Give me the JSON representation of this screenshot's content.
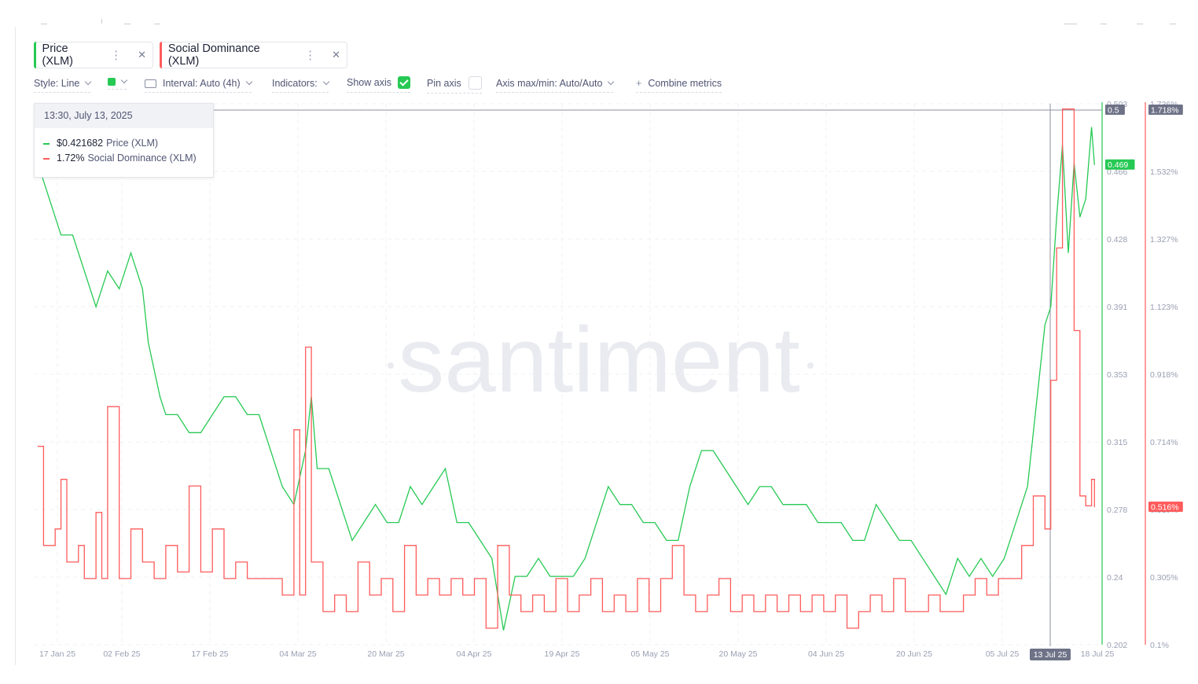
{
  "metrics": [
    {
      "label": "Price (XLM)",
      "color": "#26c953"
    },
    {
      "label": "Social Dominance (XLM)",
      "color": "#ff5b5b"
    }
  ],
  "controls": {
    "style": "Style: Line",
    "interval": "Interval: Auto (4h)",
    "indicators": "Indicators:",
    "show_axis": "Show axis",
    "pin_axis": "Pin axis",
    "axis_maxmin": "Axis max/min: Auto/Auto",
    "combine": "Combine metrics"
  },
  "tooltip": {
    "date": "13:30, July 13, 2025",
    "price_value": "$0.421682",
    "price_label": "Price (XLM)",
    "dominance_value": "1.72%",
    "dominance_label": "Social Dominance (XLM)"
  },
  "watermark": "santiment",
  "chart_data": {
    "type": "line",
    "x_ticks": [
      "17 Jan 25",
      "02 Feb 25",
      "17 Feb 25",
      "04 Mar 25",
      "20 Mar 25",
      "04 Apr 25",
      "19 Apr 25",
      "05 May 25",
      "20 May 25",
      "04 Jun 25",
      "20 Jun 25",
      "05 Jul 25",
      "13 Jul 25",
      "18 Jul 25"
    ],
    "x_range": [
      "2025-01-17",
      "2025-07-18"
    ],
    "y_left": {
      "ticks": [
        "0.503",
        "0.466",
        "0.428",
        "0.391",
        "0.353",
        "0.315",
        "0.278",
        "0.24",
        "0.202"
      ],
      "range": [
        0.202,
        0.503
      ],
      "top_label": "0.5",
      "current_label": "0.469"
    },
    "y_right": {
      "ticks": [
        "1.736%",
        "1.532%",
        "1.327%",
        "1.123%",
        "0.918%",
        "0.714%",
        "0.510%",
        "0.305%",
        "0.1%"
      ],
      "range": [
        0.1,
        1.736
      ],
      "top_label": "1.718%",
      "current_label": "0.516%"
    },
    "highlight_x_label": "13 Jul 25",
    "grid": true,
    "series": [
      {
        "name": "Price (XLM)",
        "color": "#26c953",
        "points": [
          [
            "2025-01-17",
            0.47
          ],
          [
            "2025-01-19",
            0.45
          ],
          [
            "2025-01-21",
            0.43
          ],
          [
            "2025-01-23",
            0.43
          ],
          [
            "2025-01-25",
            0.41
          ],
          [
            "2025-01-27",
            0.39
          ],
          [
            "2025-01-29",
            0.41
          ],
          [
            "2025-01-31",
            0.4
          ],
          [
            "2025-02-02",
            0.42
          ],
          [
            "2025-02-04",
            0.4
          ],
          [
            "2025-02-05",
            0.37
          ],
          [
            "2025-02-07",
            0.34
          ],
          [
            "2025-02-08",
            0.33
          ],
          [
            "2025-02-10",
            0.33
          ],
          [
            "2025-02-12",
            0.32
          ],
          [
            "2025-02-14",
            0.32
          ],
          [
            "2025-02-16",
            0.33
          ],
          [
            "2025-02-18",
            0.34
          ],
          [
            "2025-02-20",
            0.34
          ],
          [
            "2025-02-22",
            0.33
          ],
          [
            "2025-02-24",
            0.33
          ],
          [
            "2025-02-26",
            0.31
          ],
          [
            "2025-02-28",
            0.29
          ],
          [
            "2025-03-02",
            0.28
          ],
          [
            "2025-03-04",
            0.31
          ],
          [
            "2025-03-05",
            0.34
          ],
          [
            "2025-03-06",
            0.3
          ],
          [
            "2025-03-08",
            0.3
          ],
          [
            "2025-03-10",
            0.28
          ],
          [
            "2025-03-12",
            0.26
          ],
          [
            "2025-03-14",
            0.27
          ],
          [
            "2025-03-16",
            0.28
          ],
          [
            "2025-03-18",
            0.27
          ],
          [
            "2025-03-20",
            0.27
          ],
          [
            "2025-03-22",
            0.29
          ],
          [
            "2025-03-24",
            0.28
          ],
          [
            "2025-03-26",
            0.29
          ],
          [
            "2025-03-28",
            0.3
          ],
          [
            "2025-03-30",
            0.27
          ],
          [
            "2025-04-01",
            0.27
          ],
          [
            "2025-04-03",
            0.26
          ],
          [
            "2025-04-05",
            0.25
          ],
          [
            "2025-04-07",
            0.21
          ],
          [
            "2025-04-09",
            0.24
          ],
          [
            "2025-04-11",
            0.24
          ],
          [
            "2025-04-13",
            0.25
          ],
          [
            "2025-04-15",
            0.24
          ],
          [
            "2025-04-17",
            0.24
          ],
          [
            "2025-04-19",
            0.24
          ],
          [
            "2025-04-21",
            0.25
          ],
          [
            "2025-04-23",
            0.27
          ],
          [
            "2025-04-25",
            0.29
          ],
          [
            "2025-04-27",
            0.28
          ],
          [
            "2025-04-29",
            0.28
          ],
          [
            "2025-05-01",
            0.27
          ],
          [
            "2025-05-03",
            0.27
          ],
          [
            "2025-05-05",
            0.26
          ],
          [
            "2025-05-07",
            0.26
          ],
          [
            "2025-05-09",
            0.29
          ],
          [
            "2025-05-11",
            0.31
          ],
          [
            "2025-05-13",
            0.31
          ],
          [
            "2025-05-15",
            0.3
          ],
          [
            "2025-05-17",
            0.29
          ],
          [
            "2025-05-19",
            0.28
          ],
          [
            "2025-05-21",
            0.29
          ],
          [
            "2025-05-23",
            0.29
          ],
          [
            "2025-05-25",
            0.28
          ],
          [
            "2025-05-27",
            0.28
          ],
          [
            "2025-05-29",
            0.28
          ],
          [
            "2025-05-31",
            0.27
          ],
          [
            "2025-06-02",
            0.27
          ],
          [
            "2025-06-04",
            0.27
          ],
          [
            "2025-06-06",
            0.26
          ],
          [
            "2025-06-08",
            0.26
          ],
          [
            "2025-06-10",
            0.28
          ],
          [
            "2025-06-12",
            0.27
          ],
          [
            "2025-06-14",
            0.26
          ],
          [
            "2025-06-16",
            0.26
          ],
          [
            "2025-06-18",
            0.25
          ],
          [
            "2025-06-20",
            0.24
          ],
          [
            "2025-06-22",
            0.23
          ],
          [
            "2025-06-24",
            0.25
          ],
          [
            "2025-06-26",
            0.24
          ],
          [
            "2025-06-28",
            0.25
          ],
          [
            "2025-06-30",
            0.24
          ],
          [
            "2025-07-02",
            0.25
          ],
          [
            "2025-07-04",
            0.27
          ],
          [
            "2025-07-06",
            0.29
          ],
          [
            "2025-07-08",
            0.35
          ],
          [
            "2025-07-09",
            0.38
          ],
          [
            "2025-07-10",
            0.39
          ],
          [
            "2025-07-11",
            0.44
          ],
          [
            "2025-07-12",
            0.48
          ],
          [
            "2025-07-13",
            0.42
          ],
          [
            "2025-07-14",
            0.47
          ],
          [
            "2025-07-15",
            0.44
          ],
          [
            "2025-07-16",
            0.45
          ],
          [
            "2025-07-17",
            0.49
          ],
          [
            "2025-07-17T12:00",
            0.469
          ]
        ]
      },
      {
        "name": "Social Dominance (XLM)",
        "color": "#ff5b5b",
        "points": [
          [
            "2025-01-17",
            0.7
          ],
          [
            "2025-01-18",
            0.4
          ],
          [
            "2025-01-20",
            0.45
          ],
          [
            "2025-01-21",
            0.6
          ],
          [
            "2025-01-22",
            0.35
          ],
          [
            "2025-01-24",
            0.4
          ],
          [
            "2025-01-25",
            0.3
          ],
          [
            "2025-01-27",
            0.5
          ],
          [
            "2025-01-28",
            0.3
          ],
          [
            "2025-01-29",
            0.82
          ],
          [
            "2025-01-31",
            0.3
          ],
          [
            "2025-02-02",
            0.45
          ],
          [
            "2025-02-04",
            0.35
          ],
          [
            "2025-02-06",
            0.3
          ],
          [
            "2025-02-08",
            0.4
          ],
          [
            "2025-02-10",
            0.32
          ],
          [
            "2025-02-12",
            0.58
          ],
          [
            "2025-02-14",
            0.32
          ],
          [
            "2025-02-16",
            0.45
          ],
          [
            "2025-02-18",
            0.3
          ],
          [
            "2025-02-20",
            0.35
          ],
          [
            "2025-02-22",
            0.3
          ],
          [
            "2025-02-24",
            0.3
          ],
          [
            "2025-02-26",
            0.3
          ],
          [
            "2025-02-28",
            0.25
          ],
          [
            "2025-03-02",
            0.75
          ],
          [
            "2025-03-03",
            0.25
          ],
          [
            "2025-03-04",
            1.0
          ],
          [
            "2025-03-05",
            0.35
          ],
          [
            "2025-03-07",
            0.2
          ],
          [
            "2025-03-09",
            0.25
          ],
          [
            "2025-03-11",
            0.2
          ],
          [
            "2025-03-13",
            0.35
          ],
          [
            "2025-03-15",
            0.25
          ],
          [
            "2025-03-17",
            0.3
          ],
          [
            "2025-03-19",
            0.2
          ],
          [
            "2025-03-21",
            0.4
          ],
          [
            "2025-03-23",
            0.25
          ],
          [
            "2025-03-25",
            0.3
          ],
          [
            "2025-03-27",
            0.25
          ],
          [
            "2025-03-29",
            0.3
          ],
          [
            "2025-03-31",
            0.25
          ],
          [
            "2025-04-02",
            0.3
          ],
          [
            "2025-04-04",
            0.15
          ],
          [
            "2025-04-06",
            0.4
          ],
          [
            "2025-04-08",
            0.25
          ],
          [
            "2025-04-10",
            0.2
          ],
          [
            "2025-04-12",
            0.25
          ],
          [
            "2025-04-14",
            0.2
          ],
          [
            "2025-04-16",
            0.3
          ],
          [
            "2025-04-18",
            0.2
          ],
          [
            "2025-04-20",
            0.25
          ],
          [
            "2025-04-22",
            0.3
          ],
          [
            "2025-04-24",
            0.2
          ],
          [
            "2025-04-26",
            0.25
          ],
          [
            "2025-04-28",
            0.2
          ],
          [
            "2025-04-30",
            0.3
          ],
          [
            "2025-05-02",
            0.2
          ],
          [
            "2025-05-04",
            0.3
          ],
          [
            "2025-05-06",
            0.4
          ],
          [
            "2025-05-08",
            0.25
          ],
          [
            "2025-05-10",
            0.2
          ],
          [
            "2025-05-12",
            0.25
          ],
          [
            "2025-05-14",
            0.3
          ],
          [
            "2025-05-16",
            0.2
          ],
          [
            "2025-05-18",
            0.25
          ],
          [
            "2025-05-20",
            0.2
          ],
          [
            "2025-05-22",
            0.25
          ],
          [
            "2025-05-24",
            0.2
          ],
          [
            "2025-05-26",
            0.25
          ],
          [
            "2025-05-28",
            0.2
          ],
          [
            "2025-05-30",
            0.25
          ],
          [
            "2025-06-01",
            0.2
          ],
          [
            "2025-06-03",
            0.25
          ],
          [
            "2025-06-05",
            0.15
          ],
          [
            "2025-06-07",
            0.2
          ],
          [
            "2025-06-09",
            0.25
          ],
          [
            "2025-06-11",
            0.2
          ],
          [
            "2025-06-13",
            0.3
          ],
          [
            "2025-06-15",
            0.2
          ],
          [
            "2025-06-17",
            0.2
          ],
          [
            "2025-06-19",
            0.25
          ],
          [
            "2025-06-21",
            0.2
          ],
          [
            "2025-06-23",
            0.2
          ],
          [
            "2025-06-25",
            0.25
          ],
          [
            "2025-06-27",
            0.3
          ],
          [
            "2025-06-29",
            0.25
          ],
          [
            "2025-07-01",
            0.3
          ],
          [
            "2025-07-03",
            0.3
          ],
          [
            "2025-07-05",
            0.4
          ],
          [
            "2025-07-07",
            0.55
          ],
          [
            "2025-07-09",
            0.45
          ],
          [
            "2025-07-10",
            0.9
          ],
          [
            "2025-07-11",
            1.3
          ],
          [
            "2025-07-12",
            1.72
          ],
          [
            "2025-07-13",
            1.72
          ],
          [
            "2025-07-14",
            1.05
          ],
          [
            "2025-07-15",
            0.55
          ],
          [
            "2025-07-16",
            0.52
          ],
          [
            "2025-07-17",
            0.6
          ],
          [
            "2025-07-17T12:00",
            0.516
          ]
        ]
      }
    ]
  }
}
